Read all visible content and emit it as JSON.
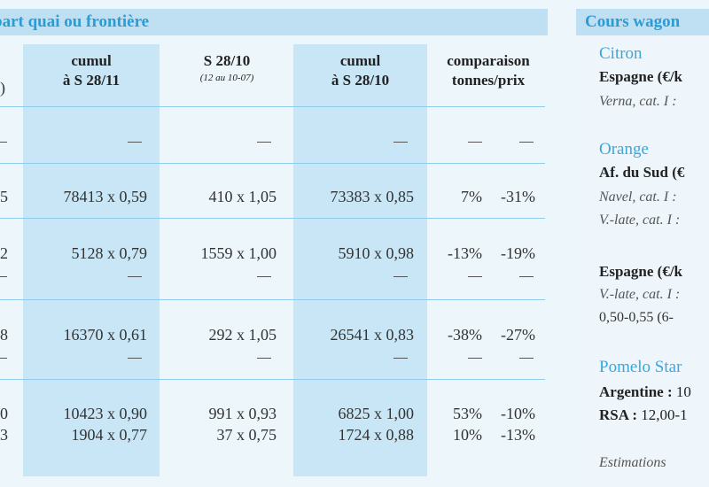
{
  "table": {
    "title": "part quai ou frontière",
    "columns": [
      {
        "label_line1": "cumul",
        "label_line2": "à S 28/11"
      },
      {
        "label_line1": "S 28/10",
        "label_line2": "(12 au 10-07)"
      },
      {
        "label_line1": "cumul",
        "label_line2": "à S 28/10"
      },
      {
        "label_line1": "comparaison",
        "label_line2": "tonnes/prix"
      }
    ],
    "first_col_fragments": {
      "top": ")",
      "row3": "5",
      "row5": "2",
      "row7": "8",
      "row9a": "0",
      "row9b": "3"
    },
    "rows": [
      {
        "c1": "78413 x 0,59",
        "c2": "410 x 1,05",
        "c3": "73383 x 0,85",
        "t": "7%",
        "p": "-31%"
      },
      {
        "c1": "5128 x 0,79",
        "c2": "1559 x 1,00",
        "c3": "5910 x 0,98",
        "t": "-13%",
        "p": "-19%"
      },
      {
        "c1": "16370 x 0,61",
        "c2": "292 x 1,05",
        "c3": "26541 x 0,83",
        "t": "-38%",
        "p": "-27%"
      },
      {
        "c1": "10423 x 0,90",
        "c2": "991 x 0,93",
        "c3": "6825 x 1,00",
        "t": "53%",
        "p": "-10%"
      },
      {
        "c1": "1904 x 0,77",
        "c2": "37 x 0,75",
        "c3": "1724 x 0,88",
        "t": "10%",
        "p": "-13%"
      }
    ],
    "dash": "—"
  },
  "panel": {
    "title": "Cours wagon",
    "citron": "Citron",
    "citron_origin": "Espagne (€/k",
    "citron_item": "Verna, cat. I :",
    "orange": "Orange",
    "orange_origin1": "Af. du Sud (€",
    "orange_item1": "Navel, cat. I :",
    "orange_item2": "V.-late, cat. I :",
    "orange_origin2": "Espagne (€/k",
    "orange_item3": "V.-late, cat. I :",
    "orange_price": "0,50-0,55 (6-",
    "pomelo": "Pomelo Star",
    "argentine_label": "Argentine :",
    "argentine_value": "10",
    "rsa_label": "RSA :",
    "rsa_value": "12,00-1",
    "estimations": "Estimations"
  }
}
